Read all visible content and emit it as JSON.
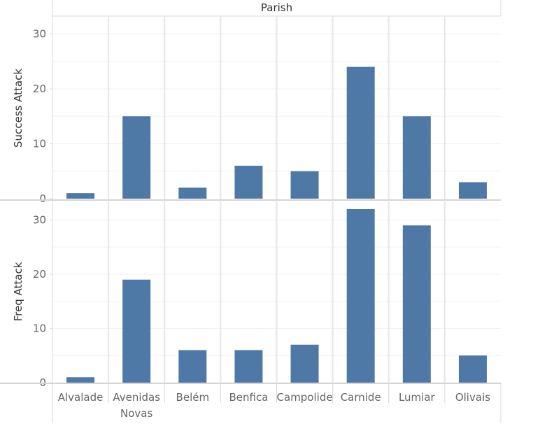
{
  "chart_data": {
    "type": "bar",
    "column_header": "Parish",
    "categories": [
      "Alvalade",
      "Avenidas Novas",
      "Belém",
      "Benfica",
      "Campolide",
      "Carnide",
      "Lumiar",
      "Olivais"
    ],
    "category_lines": [
      [
        "Alvalade"
      ],
      [
        "Avenidas",
        "Novas"
      ],
      [
        "Belém"
      ],
      [
        "Benfica"
      ],
      [
        "Campolide"
      ],
      [
        "Carnide"
      ],
      [
        "Lumiar"
      ],
      [
        "Olivais"
      ]
    ],
    "panels": [
      {
        "ylabel": "Success Attack",
        "values": [
          1,
          15,
          2,
          6,
          5,
          24,
          15,
          3
        ],
        "ylim": [
          0,
          32
        ],
        "yticks": [
          0,
          10,
          20,
          30
        ]
      },
      {
        "ylabel": "Freq Attack",
        "values": [
          1,
          19,
          6,
          6,
          7,
          32,
          29,
          5
        ],
        "ylim": [
          0,
          33
        ],
        "yticks": [
          0,
          10,
          20,
          30
        ]
      }
    ],
    "bar_color": "#4e79a7",
    "grid": true,
    "legend": "none"
  }
}
